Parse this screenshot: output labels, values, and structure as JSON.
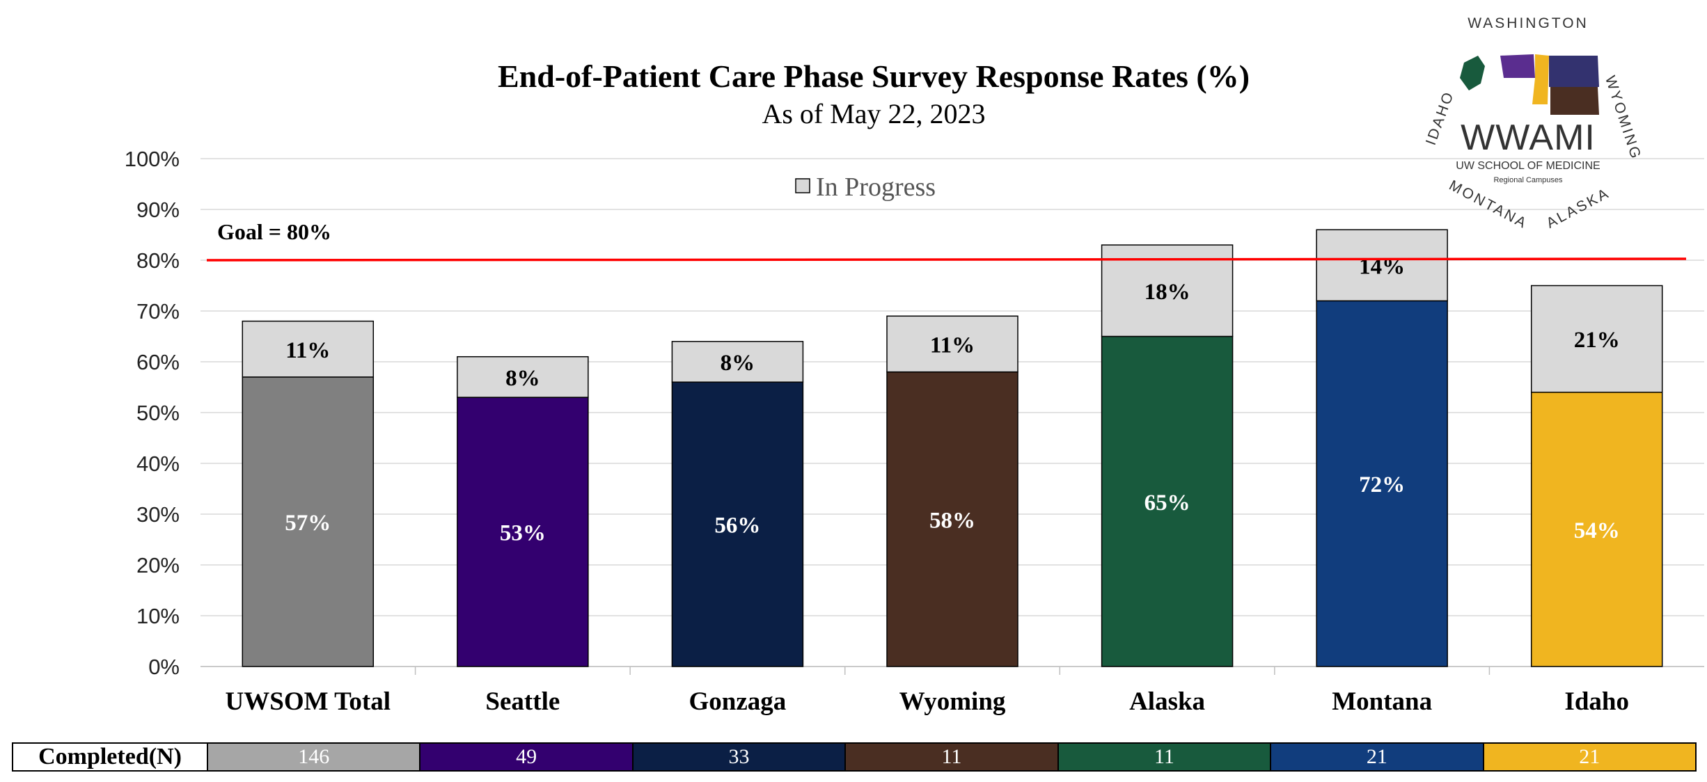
{
  "chart_data": {
    "type": "bar",
    "stacked": true,
    "title": "End-of-Patient Care Phase Survey Response Rates (%)",
    "subtitle": "As of May 22, 2023",
    "categories": [
      "UWSOM Total",
      "Seattle",
      "Gonzaga",
      "Wyoming",
      "Alaska",
      "Montana",
      "Idaho"
    ],
    "series": [
      {
        "name": "",
        "values": [
          57,
          53,
          56,
          58,
          65,
          72,
          54
        ],
        "labels": [
          "57%",
          "53%",
          "56%",
          "58%",
          "65%",
          "72%",
          "54%"
        ],
        "colors": [
          "#808080",
          "#33006f",
          "#0b1f45",
          "#4a2e22",
          "#185a3d",
          "#113d7d",
          "#f0b520"
        ]
      },
      {
        "name": "In Progress",
        "values": [
          11,
          8,
          8,
          11,
          18,
          14,
          21
        ],
        "labels": [
          "11%",
          "8%",
          "8%",
          "11%",
          "18%",
          "14%",
          "21%"
        ],
        "color": "#d9d9d9"
      }
    ],
    "ylim": [
      0,
      100
    ],
    "yticks": [
      "0%",
      "10%",
      "20%",
      "30%",
      "40%",
      "50%",
      "60%",
      "70%",
      "80%",
      "90%",
      "100%"
    ],
    "goal": {
      "label": "Goal = 80%",
      "value": 80,
      "color": "#ff0000"
    },
    "legend": {
      "position": "top-center"
    },
    "grid": true
  },
  "completed_table": {
    "header": "Completed(N)",
    "values": [
      "146",
      "49",
      "33",
      "11",
      "11",
      "21",
      "21"
    ],
    "colors": [
      "#a6a6a6",
      "#33006f",
      "#0b1f45",
      "#4a2e22",
      "#185a3d",
      "#113d7d",
      "#f0b520"
    ]
  },
  "logo": {
    "ring_top": "WASHINGTON",
    "ring_left": "IDAHO",
    "ring_right": "WYOMING",
    "ring_bottom_left": "MONTANA",
    "ring_bottom_right": "ALASKA",
    "name": "WWAMI",
    "line1": "UW SCHOOL OF MEDICINE",
    "line2": "Regional Campuses"
  }
}
